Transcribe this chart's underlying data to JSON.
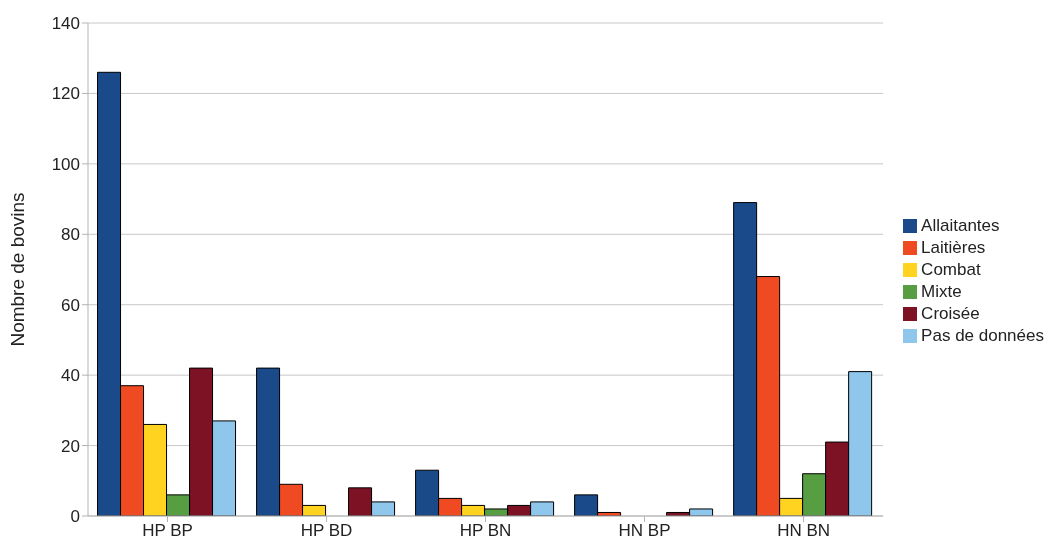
{
  "chart_data": {
    "type": "bar",
    "ylabel": "Nombre de bovins",
    "categories": [
      "HP BP",
      "HP BD",
      "HP BN",
      "HN BP",
      "HN BN"
    ],
    "series": [
      {
        "name": "Allaitantes",
        "color": "#1a4a8a",
        "values": [
          126,
          42,
          13,
          6,
          89
        ]
      },
      {
        "name": "Laitières",
        "color": "#f04a23",
        "values": [
          37,
          9,
          5,
          1,
          68
        ]
      },
      {
        "name": "Combat",
        "color": "#ffd320",
        "values": [
          26,
          3,
          3,
          0,
          5
        ]
      },
      {
        "name": "Mixte",
        "color": "#579d42",
        "values": [
          6,
          0,
          2,
          0,
          12
        ]
      },
      {
        "name": "Croisée",
        "color": "#7e1225",
        "values": [
          42,
          8,
          3,
          1,
          21
        ]
      },
      {
        "name": "Pas de données",
        "color": "#8ec6ec",
        "values": [
          27,
          4,
          4,
          2,
          41
        ]
      }
    ],
    "ylim": [
      0,
      140
    ],
    "yticks": [
      0,
      20,
      40,
      60,
      80,
      100,
      120,
      140
    ],
    "grid": "y",
    "legend": "right"
  }
}
